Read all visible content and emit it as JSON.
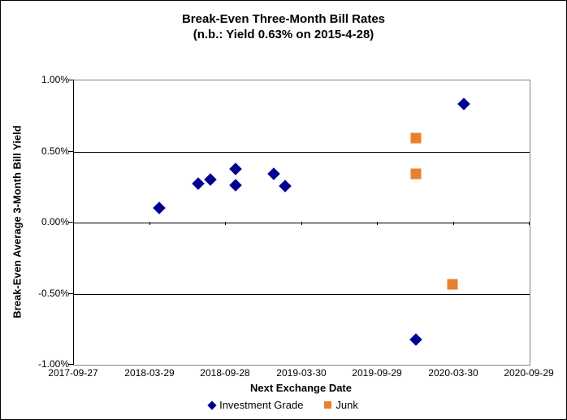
{
  "title": {
    "line1": "Break-Even Three-Month Bill Rates",
    "line2": "(n.b.: Yield 0.63% on 2015-4-28)"
  },
  "chart_data": {
    "type": "scatter",
    "title": "Break-Even Three-Month Bill Rates",
    "subtitle": "(n.b.: Yield 0.63% on 2015-4-28)",
    "xlabel": "Next Exchange Date",
    "ylabel": "Break-Even Average 3-Month Bill Yield",
    "grid": "horizontal-major",
    "legend_position": "bottom",
    "background_color": "#FFFFFF",
    "x_axis": {
      "type": "date",
      "min": "2017-09-27",
      "max": "2020-09-29",
      "tick_labels": [
        "2017-09-27",
        "2018-03-29",
        "2018-09-28",
        "2019-03-30",
        "2019-09-29",
        "2020-03-30",
        "2020-09-29"
      ]
    },
    "y_axis": {
      "min": -1.0,
      "max": 1.0,
      "unit": "%",
      "tick_labels": [
        "1.00%",
        "0.50%",
        "0.00%",
        "-0.50%",
        "-1.00%"
      ],
      "tick_values": [
        1.0,
        0.5,
        0.0,
        -0.5,
        -1.0
      ]
    },
    "series": [
      {
        "name": "Investment Grade",
        "marker": "diamond",
        "color": "#000090",
        "points": [
          {
            "x": "2018-04-23",
            "y": 0.1
          },
          {
            "x": "2018-07-25",
            "y": 0.27
          },
          {
            "x": "2018-08-24",
            "y": 0.3
          },
          {
            "x": "2018-10-23",
            "y": 0.37
          },
          {
            "x": "2018-10-23",
            "y": 0.26
          },
          {
            "x": "2019-01-23",
            "y": 0.34
          },
          {
            "x": "2019-02-20",
            "y": 0.25
          },
          {
            "x": "2020-01-01",
            "y": -0.83
          },
          {
            "x": "2020-04-25",
            "y": 0.83
          }
        ]
      },
      {
        "name": "Junk",
        "marker": "square",
        "color": "#E8812F",
        "points": [
          {
            "x": "2019-12-31",
            "y": 0.59
          },
          {
            "x": "2019-12-31",
            "y": 0.34
          },
          {
            "x": "2020-03-29",
            "y": -0.44
          }
        ]
      }
    ]
  }
}
